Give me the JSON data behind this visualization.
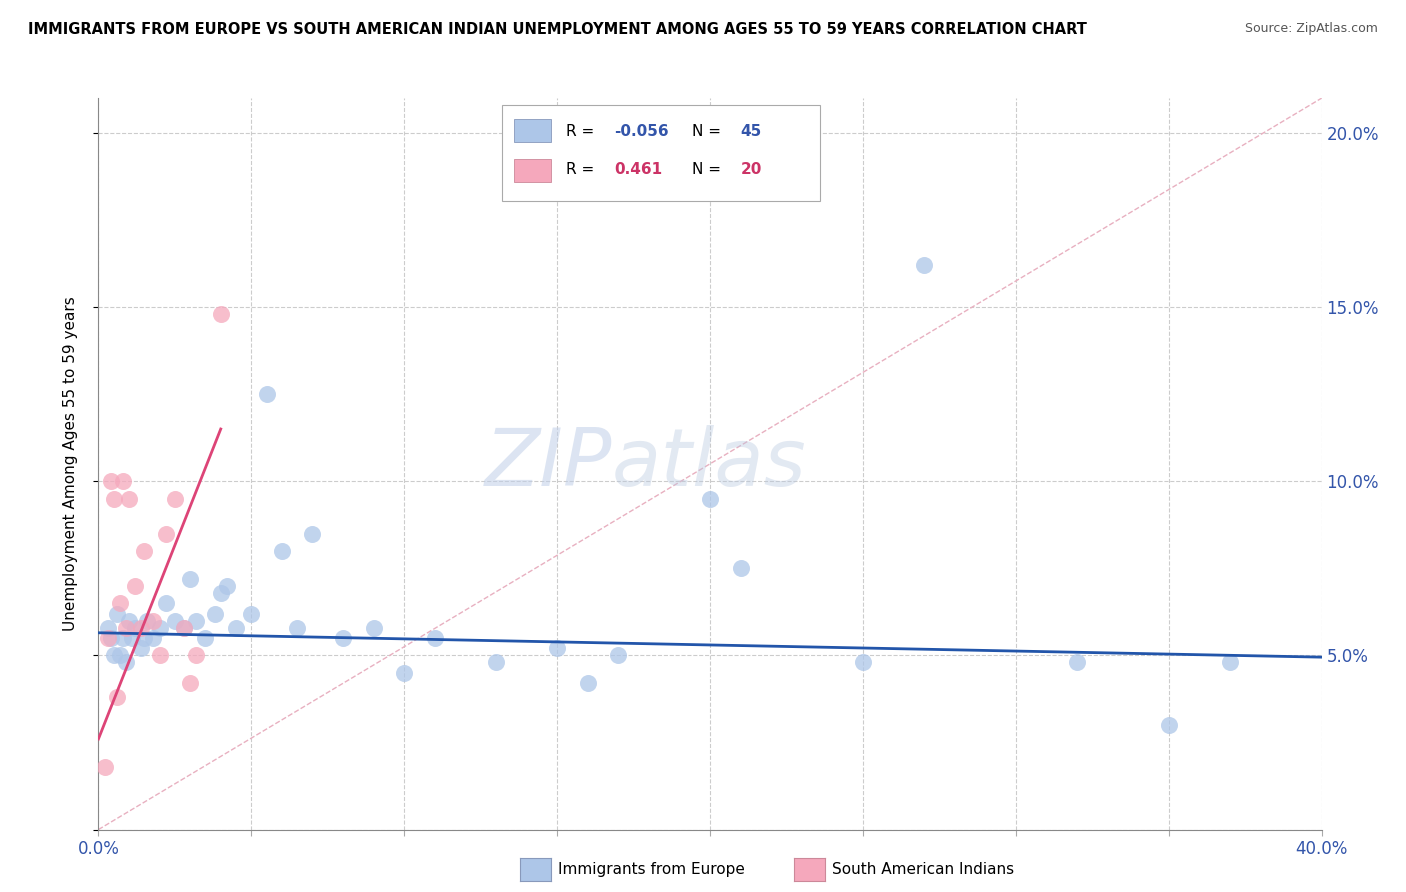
{
  "title": "IMMIGRANTS FROM EUROPE VS SOUTH AMERICAN INDIAN UNEMPLOYMENT AMONG AGES 55 TO 59 YEARS CORRELATION CHART",
  "source": "Source: ZipAtlas.com",
  "ylabel": "Unemployment Among Ages 55 to 59 years",
  "xlim": [
    0.0,
    0.4
  ],
  "ylim": [
    0.0,
    0.21
  ],
  "xticks": [
    0.0,
    0.05,
    0.1,
    0.15,
    0.2,
    0.25,
    0.3,
    0.35,
    0.4
  ],
  "yticks": [
    0.0,
    0.05,
    0.1,
    0.15,
    0.2
  ],
  "blue_color": "#adc6e8",
  "pink_color": "#f5a8bc",
  "blue_line_color": "#2255aa",
  "pink_line_color": "#dd4477",
  "diag_line_color": "#e8b0c0",
  "watermark_zip": "ZIP",
  "watermark_atlas": "atlas",
  "legend_blue_R": "-0.056",
  "legend_blue_N": "45",
  "legend_pink_R": "0.461",
  "legend_pink_N": "20",
  "blue_points_x": [
    0.003,
    0.004,
    0.005,
    0.006,
    0.007,
    0.008,
    0.009,
    0.01,
    0.011,
    0.012,
    0.014,
    0.015,
    0.016,
    0.018,
    0.02,
    0.022,
    0.025,
    0.028,
    0.03,
    0.032,
    0.035,
    0.038,
    0.04,
    0.042,
    0.045,
    0.05,
    0.055,
    0.06,
    0.065,
    0.07,
    0.08,
    0.09,
    0.1,
    0.11,
    0.13,
    0.15,
    0.16,
    0.17,
    0.2,
    0.21,
    0.25,
    0.27,
    0.32,
    0.35,
    0.37
  ],
  "blue_points_y": [
    0.058,
    0.055,
    0.05,
    0.062,
    0.05,
    0.055,
    0.048,
    0.06,
    0.055,
    0.058,
    0.052,
    0.055,
    0.06,
    0.055,
    0.058,
    0.065,
    0.06,
    0.058,
    0.072,
    0.06,
    0.055,
    0.062,
    0.068,
    0.07,
    0.058,
    0.062,
    0.125,
    0.08,
    0.058,
    0.085,
    0.055,
    0.058,
    0.045,
    0.055,
    0.048,
    0.052,
    0.042,
    0.05,
    0.095,
    0.075,
    0.048,
    0.162,
    0.048,
    0.03,
    0.048
  ],
  "pink_points_x": [
    0.002,
    0.003,
    0.004,
    0.005,
    0.006,
    0.007,
    0.008,
    0.009,
    0.01,
    0.012,
    0.014,
    0.015,
    0.018,
    0.02,
    0.022,
    0.025,
    0.028,
    0.03,
    0.032,
    0.04
  ],
  "pink_points_y": [
    0.018,
    0.055,
    0.1,
    0.095,
    0.038,
    0.065,
    0.1,
    0.058,
    0.095,
    0.07,
    0.058,
    0.08,
    0.06,
    0.05,
    0.085,
    0.095,
    0.058,
    0.042,
    0.05,
    0.148
  ],
  "blue_line_x0": 0.0,
  "blue_line_x1": 0.4,
  "blue_line_y0": 0.0565,
  "blue_line_y1": 0.0495,
  "pink_line_x0": 0.0,
  "pink_line_x1": 0.04,
  "pink_line_y0": 0.026,
  "pink_line_y1": 0.115
}
